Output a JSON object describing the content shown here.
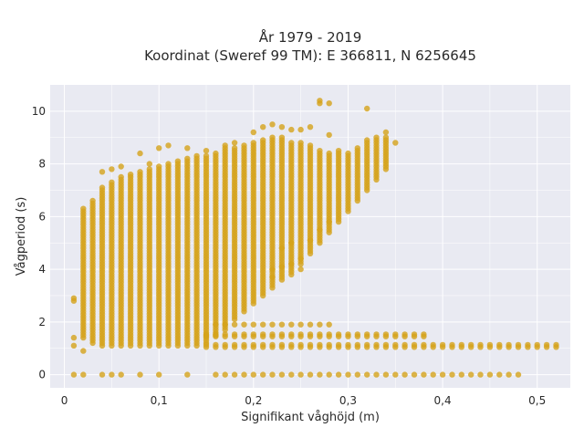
{
  "chart_data": {
    "type": "scatter",
    "title_line1": "År 1979 - 2019",
    "title_line2": "Koordinat (Sweref 99 TM): E 366811, N 6256645",
    "xlabel": "Signifikant våghöjd (m)",
    "ylabel": "Vågperiod (s)",
    "xlim": [
      -0.015,
      0.535
    ],
    "ylim": [
      -0.5,
      11
    ],
    "x_ticks": [
      0,
      0.1,
      0.2,
      0.3,
      0.4,
      0.5
    ],
    "x_tick_labels": [
      "0",
      "0,1",
      "0,2",
      "0,3",
      "0,4",
      "0,5"
    ],
    "y_ticks": [
      0,
      2,
      4,
      6,
      8,
      10
    ],
    "y_tick_labels": [
      "0",
      "2",
      "4",
      "6",
      "8",
      "10"
    ],
    "grid": true,
    "point_color": "#d4a21a",
    "plot_background": "#e9eaf2",
    "columns": [
      {
        "x": 0.01,
        "ymin": 2.8,
        "ymax": 2.9
      },
      {
        "x": 0.02,
        "ymin": 1.4,
        "ymax": 6.3
      },
      {
        "x": 0.03,
        "ymin": 1.2,
        "ymax": 6.6
      },
      {
        "x": 0.04,
        "ymin": 1.1,
        "ymax": 7.1
      },
      {
        "x": 0.05,
        "ymin": 1.1,
        "ymax": 7.3
      },
      {
        "x": 0.06,
        "ymin": 1.1,
        "ymax": 7.5
      },
      {
        "x": 0.07,
        "ymin": 1.1,
        "ymax": 7.6
      },
      {
        "x": 0.08,
        "ymin": 1.1,
        "ymax": 7.7
      },
      {
        "x": 0.09,
        "ymin": 1.1,
        "ymax": 7.8
      },
      {
        "x": 0.1,
        "ymin": 1.1,
        "ymax": 7.9
      },
      {
        "x": 0.11,
        "ymin": 1.1,
        "ymax": 8.0
      },
      {
        "x": 0.12,
        "ymin": 1.1,
        "ymax": 8.1
      },
      {
        "x": 0.13,
        "ymin": 1.1,
        "ymax": 8.2
      },
      {
        "x": 0.14,
        "ymin": 1.1,
        "ymax": 8.2
      },
      {
        "x": 0.15,
        "ymin": 1.2,
        "ymax": 8.3
      },
      {
        "x": 0.16,
        "ymin": 1.5,
        "ymax": 8.4
      },
      {
        "x": 0.17,
        "ymin": 1.7,
        "ymax": 8.6
      },
      {
        "x": 0.18,
        "ymin": 2.1,
        "ymax": 8.6
      },
      {
        "x": 0.19,
        "ymin": 2.4,
        "ymax": 8.7
      },
      {
        "x": 0.2,
        "ymin": 2.7,
        "ymax": 8.8
      },
      {
        "x": 0.21,
        "ymin": 3.0,
        "ymax": 8.9
      },
      {
        "x": 0.22,
        "ymin": 3.3,
        "ymax": 9.0
      },
      {
        "x": 0.23,
        "ymin": 3.6,
        "ymax": 9.0
      },
      {
        "x": 0.24,
        "ymin": 3.8,
        "ymax": 8.8
      },
      {
        "x": 0.25,
        "ymin": 4.2,
        "ymax": 8.8
      },
      {
        "x": 0.26,
        "ymin": 4.6,
        "ymax": 8.7
      },
      {
        "x": 0.27,
        "ymin": 5.0,
        "ymax": 8.5
      },
      {
        "x": 0.28,
        "ymin": 5.4,
        "ymax": 8.4
      },
      {
        "x": 0.29,
        "ymin": 5.8,
        "ymax": 8.4
      },
      {
        "x": 0.3,
        "ymin": 6.2,
        "ymax": 8.4
      },
      {
        "x": 0.31,
        "ymin": 6.6,
        "ymax": 8.6
      },
      {
        "x": 0.32,
        "ymin": 7.0,
        "ymax": 8.9
      },
      {
        "x": 0.33,
        "ymin": 7.4,
        "ymax": 8.9
      },
      {
        "x": 0.34,
        "ymin": 7.8,
        "ymax": 9.0
      }
    ],
    "sparse_points": [
      {
        "x": 0.01,
        "y": 1.1
      },
      {
        "x": 0.01,
        "y": 1.4
      },
      {
        "x": 0.02,
        "y": 0.9
      },
      {
        "x": 0.04,
        "y": 7.7
      },
      {
        "x": 0.05,
        "y": 7.8
      },
      {
        "x": 0.06,
        "y": 7.9
      },
      {
        "x": 0.08,
        "y": 8.4
      },
      {
        "x": 0.09,
        "y": 8.0
      },
      {
        "x": 0.1,
        "y": 8.6
      },
      {
        "x": 0.11,
        "y": 8.7
      },
      {
        "x": 0.13,
        "y": 8.6
      },
      {
        "x": 0.14,
        "y": 8.3
      },
      {
        "x": 0.15,
        "y": 8.5
      },
      {
        "x": 0.17,
        "y": 8.7
      },
      {
        "x": 0.18,
        "y": 8.8
      },
      {
        "x": 0.2,
        "y": 9.2
      },
      {
        "x": 0.21,
        "y": 9.4
      },
      {
        "x": 0.22,
        "y": 9.5
      },
      {
        "x": 0.23,
        "y": 9.4
      },
      {
        "x": 0.24,
        "y": 9.3
      },
      {
        "x": 0.25,
        "y": 9.3
      },
      {
        "x": 0.26,
        "y": 9.4
      },
      {
        "x": 0.27,
        "y": 10.4
      },
      {
        "x": 0.27,
        "y": 10.3
      },
      {
        "x": 0.28,
        "y": 10.3
      },
      {
        "x": 0.28,
        "y": 9.1
      },
      {
        "x": 0.29,
        "y": 8.5
      },
      {
        "x": 0.32,
        "y": 10.1
      },
      {
        "x": 0.33,
        "y": 9.0
      },
      {
        "x": 0.34,
        "y": 9.2
      },
      {
        "x": 0.35,
        "y": 8.8
      },
      {
        "x": 0.16,
        "y": 1.9
      },
      {
        "x": 0.17,
        "y": 1.9
      },
      {
        "x": 0.18,
        "y": 1.9
      },
      {
        "x": 0.19,
        "y": 1.9
      },
      {
        "x": 0.2,
        "y": 1.9
      },
      {
        "x": 0.21,
        "y": 1.9
      },
      {
        "x": 0.22,
        "y": 1.9
      },
      {
        "x": 0.23,
        "y": 1.9
      },
      {
        "x": 0.24,
        "y": 1.9
      },
      {
        "x": 0.25,
        "y": 1.9
      },
      {
        "x": 0.26,
        "y": 1.9
      },
      {
        "x": 0.27,
        "y": 1.9
      },
      {
        "x": 0.28,
        "y": 1.9
      },
      {
        "x": 0.22,
        "y": 4.0
      },
      {
        "x": 0.23,
        "y": 4.1
      },
      {
        "x": 0.24,
        "y": 4.2
      },
      {
        "x": 0.25,
        "y": 4.4
      },
      {
        "x": 0.25,
        "y": 4.0
      },
      {
        "x": 0.22,
        "y": 3.7
      },
      {
        "x": 0.26,
        "y": 5.1
      },
      {
        "x": 0.27,
        "y": 5.5
      },
      {
        "x": 0.28,
        "y": 5.8
      },
      {
        "x": 0.23,
        "y": 4.8
      },
      {
        "x": 0.24,
        "y": 5.0
      }
    ],
    "band_rows": [
      {
        "y": 1.05,
        "x_start": 0.15,
        "x_end": 0.52
      },
      {
        "y": 1.45,
        "x_start": 0.15,
        "x_end": 0.38
      }
    ],
    "zero_row": {
      "y": 0,
      "x_values": [
        0.01,
        0.02,
        0.04,
        0.05,
        0.06,
        0.08,
        0.1,
        0.13,
        0.16,
        0.17,
        0.18,
        0.19,
        0.2,
        0.21,
        0.22,
        0.23,
        0.24,
        0.25,
        0.26,
        0.27,
        0.28,
        0.29,
        0.3,
        0.31,
        0.32,
        0.33,
        0.34,
        0.35,
        0.36,
        0.37,
        0.38,
        0.39,
        0.4,
        0.41,
        0.42,
        0.43,
        0.44,
        0.45,
        0.46,
        0.47,
        0.48
      ]
    }
  }
}
